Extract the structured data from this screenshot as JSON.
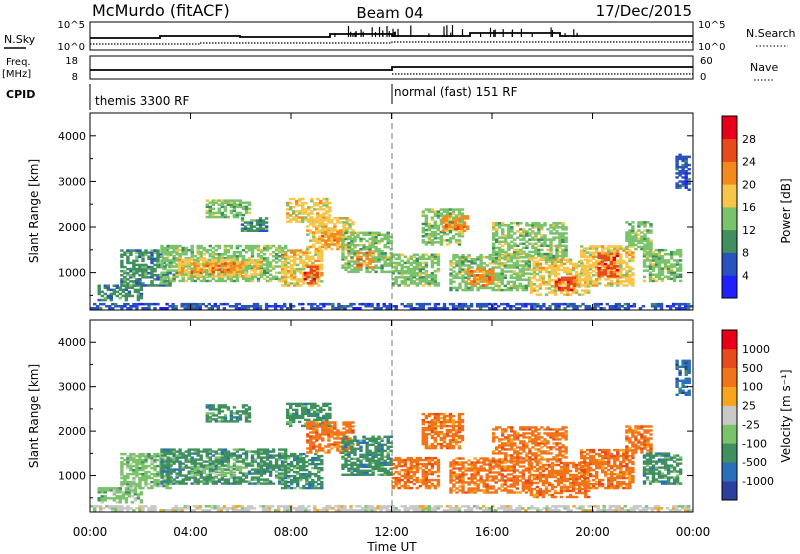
{
  "header": {
    "station": "McMurdo (fitACF)",
    "beam": "Beam 04",
    "date": "17/Dec/2015"
  },
  "summary_panels": {
    "nsky_label": "N.Sky",
    "nsky_ticks": [
      "10^5",
      "10^0"
    ],
    "nsearch_label": "N.Search",
    "freq_label_top": "Freq.",
    "freq_label_unit": "[MHz]",
    "freq_ticks": [
      "18",
      "8"
    ],
    "nave_label": "Nave",
    "nave_ticks": [
      "60",
      "0"
    ],
    "cpid_label": "CPID",
    "cpid_segments": [
      "themis 3300 RF",
      "normal (fast) 151 RF"
    ]
  },
  "chart_data": [
    {
      "type": "heatmap",
      "name": "power",
      "ylabel": "Slant Range [km]",
      "xlabel": "",
      "yticks": [
        "1000",
        "2000",
        "3000",
        "4000"
      ],
      "ylim": [
        180,
        4500
      ],
      "xlim": [
        0,
        24
      ],
      "colorbar": {
        "label": "Power [dB]",
        "ticks": [
          "4",
          "8",
          "12",
          "16",
          "20",
          "24",
          "28"
        ],
        "colors": [
          "#1f1fff",
          "#2a52be",
          "#3f8f5f",
          "#7bc36b",
          "#f6c54a",
          "#f28a1e",
          "#e84a1a",
          "#e8001a"
        ]
      },
      "regions": [
        {
          "t0": 0.0,
          "t1": 24.0,
          "r0": 200,
          "r1": 320,
          "level": 1
        },
        {
          "t0": 0.3,
          "t1": 2.0,
          "r0": 380,
          "r1": 700,
          "level": 2
        },
        {
          "t0": 1.2,
          "t1": 3.2,
          "r0": 700,
          "r1": 1500,
          "level": 2
        },
        {
          "t0": 2.8,
          "t1": 7.8,
          "r0": 800,
          "r1": 1600,
          "level": 3
        },
        {
          "t0": 3.5,
          "t1": 6.8,
          "r0": 900,
          "r1": 1300,
          "level": 4
        },
        {
          "t0": 4.0,
          "t1": 6.0,
          "r0": 1000,
          "r1": 1200,
          "level": 5
        },
        {
          "t0": 4.6,
          "t1": 6.3,
          "r0": 2200,
          "r1": 2600,
          "level": 3
        },
        {
          "t0": 6.0,
          "t1": 7.0,
          "r0": 1900,
          "r1": 2200,
          "level": 2
        },
        {
          "t0": 7.6,
          "t1": 9.2,
          "r0": 700,
          "r1": 1500,
          "level": 4
        },
        {
          "t0": 8.5,
          "t1": 9.0,
          "r0": 750,
          "r1": 1150,
          "level": 6
        },
        {
          "t0": 7.8,
          "t1": 9.5,
          "r0": 2100,
          "r1": 2600,
          "level": 4
        },
        {
          "t0": 8.6,
          "t1": 10.4,
          "r0": 1500,
          "r1": 2200,
          "level": 4
        },
        {
          "t0": 9.2,
          "t1": 10.0,
          "r0": 1600,
          "r1": 1900,
          "level": 5
        },
        {
          "t0": 10.0,
          "t1": 12.0,
          "r0": 1000,
          "r1": 1900,
          "level": 3
        },
        {
          "t0": 10.6,
          "t1": 11.2,
          "r0": 1100,
          "r1": 1450,
          "level": 5
        },
        {
          "t0": 12.0,
          "t1": 13.8,
          "r0": 700,
          "r1": 1400,
          "level": 3
        },
        {
          "t0": 13.2,
          "t1": 14.8,
          "r0": 1600,
          "r1": 2400,
          "level": 3
        },
        {
          "t0": 14.0,
          "t1": 15.0,
          "r0": 1900,
          "r1": 2250,
          "level": 5
        },
        {
          "t0": 14.3,
          "t1": 17.5,
          "r0": 600,
          "r1": 1400,
          "level": 3
        },
        {
          "t0": 15.0,
          "t1": 16.0,
          "r0": 700,
          "r1": 1100,
          "level": 5
        },
        {
          "t0": 16.0,
          "t1": 19.0,
          "r0": 1300,
          "r1": 2100,
          "level": 3
        },
        {
          "t0": 17.5,
          "t1": 19.8,
          "r0": 500,
          "r1": 1300,
          "level": 4
        },
        {
          "t0": 18.5,
          "t1": 19.3,
          "r0": 600,
          "r1": 900,
          "level": 6
        },
        {
          "t0": 19.5,
          "t1": 21.6,
          "r0": 700,
          "r1": 1600,
          "level": 4
        },
        {
          "t0": 20.2,
          "t1": 21.0,
          "r0": 900,
          "r1": 1400,
          "level": 6
        },
        {
          "t0": 21.3,
          "t1": 22.3,
          "r0": 1500,
          "r1": 2100,
          "level": 3
        },
        {
          "t0": 22.0,
          "t1": 23.5,
          "r0": 800,
          "r1": 1500,
          "level": 3
        },
        {
          "t0": 23.3,
          "t1": 23.8,
          "r0": 2800,
          "r1": 3600,
          "level": 1
        }
      ]
    },
    {
      "type": "heatmap",
      "name": "velocity",
      "ylabel": "Slant Range [km]",
      "xlabel": "Time UT",
      "yticks": [
        "1000",
        "2000",
        "3000",
        "4000"
      ],
      "xticks": [
        "00:00",
        "04:00",
        "08:00",
        "12:00",
        "16:00",
        "20:00",
        "00:00"
      ],
      "ylim": [
        180,
        4500
      ],
      "xlim": [
        0,
        24
      ],
      "colorbar": {
        "label": "Velocity [m s⁻¹]",
        "ticks": [
          "1000",
          "500",
          "100",
          "25",
          "-25",
          "-100",
          "-500",
          "-1000"
        ],
        "colors": [
          "#2a3f9f",
          "#2a6fb8",
          "#3f8f5f",
          "#7bc36b",
          "#c8c8c8",
          "#f6a51e",
          "#f2741a",
          "#e84a1a",
          "#e8001a"
        ]
      },
      "regions": [
        {
          "t0": 0.0,
          "t1": 24.0,
          "r0": 200,
          "r1": 320,
          "level": 4
        },
        {
          "t0": 0.3,
          "t1": 2.0,
          "r0": 380,
          "r1": 700,
          "level": 3
        },
        {
          "t0": 1.2,
          "t1": 3.2,
          "r0": 700,
          "r1": 1500,
          "level": 3
        },
        {
          "t0": 2.8,
          "t1": 7.8,
          "r0": 800,
          "r1": 1600,
          "level": 2
        },
        {
          "t0": 4.0,
          "t1": 6.0,
          "r0": 1000,
          "r1": 1200,
          "level": 3
        },
        {
          "t0": 4.6,
          "t1": 6.3,
          "r0": 2200,
          "r1": 2600,
          "level": 2
        },
        {
          "t0": 7.6,
          "t1": 9.2,
          "r0": 700,
          "r1": 1500,
          "level": 2
        },
        {
          "t0": 7.8,
          "t1": 9.5,
          "r0": 2100,
          "r1": 2600,
          "level": 2
        },
        {
          "t0": 8.6,
          "t1": 10.4,
          "r0": 1500,
          "r1": 2200,
          "level": 6
        },
        {
          "t0": 10.0,
          "t1": 12.0,
          "r0": 1000,
          "r1": 1900,
          "level": 2
        },
        {
          "t0": 12.0,
          "t1": 13.8,
          "r0": 700,
          "r1": 1400,
          "level": 6
        },
        {
          "t0": 13.2,
          "t1": 14.8,
          "r0": 1600,
          "r1": 2400,
          "level": 6
        },
        {
          "t0": 14.3,
          "t1": 17.5,
          "r0": 600,
          "r1": 1400,
          "level": 6
        },
        {
          "t0": 16.0,
          "t1": 19.0,
          "r0": 1300,
          "r1": 2100,
          "level": 6
        },
        {
          "t0": 17.5,
          "t1": 19.8,
          "r0": 500,
          "r1": 1300,
          "level": 6
        },
        {
          "t0": 19.5,
          "t1": 21.6,
          "r0": 700,
          "r1": 1600,
          "level": 6
        },
        {
          "t0": 21.3,
          "t1": 22.3,
          "r0": 1500,
          "r1": 2100,
          "level": 6
        },
        {
          "t0": 22.0,
          "t1": 23.5,
          "r0": 800,
          "r1": 1500,
          "level": 2
        },
        {
          "t0": 23.3,
          "t1": 23.8,
          "r0": 2800,
          "r1": 3600,
          "level": 1
        }
      ]
    }
  ]
}
